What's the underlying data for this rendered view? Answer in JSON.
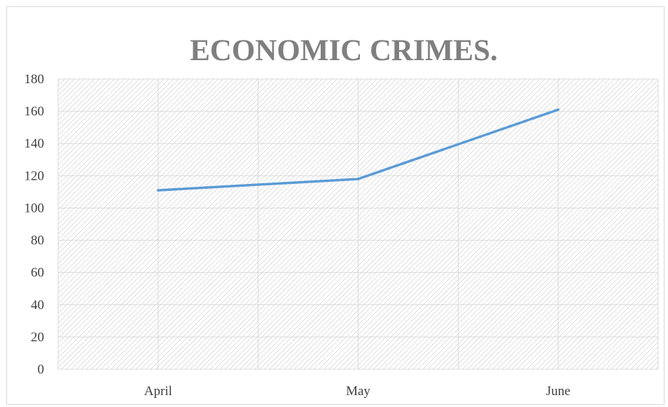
{
  "chart_data": {
    "type": "line",
    "title": "ECONOMIC CRIMES.",
    "xlabel": "",
    "ylabel": "",
    "categories": [
      "April",
      "May",
      "June"
    ],
    "series": [
      {
        "values": [
          111,
          118,
          161
        ]
      }
    ],
    "ylim": [
      0,
      180
    ],
    "yticks": [
      0,
      20,
      40,
      60,
      80,
      100,
      120,
      140,
      160,
      180
    ],
    "grid": true,
    "legend": "none",
    "colors": {
      "line": "#5b9bd5",
      "grid": "#d9d9d9",
      "plot_hatch": "#d0d0d0",
      "title": "#7f7f7f",
      "ticks": "#404040"
    }
  }
}
